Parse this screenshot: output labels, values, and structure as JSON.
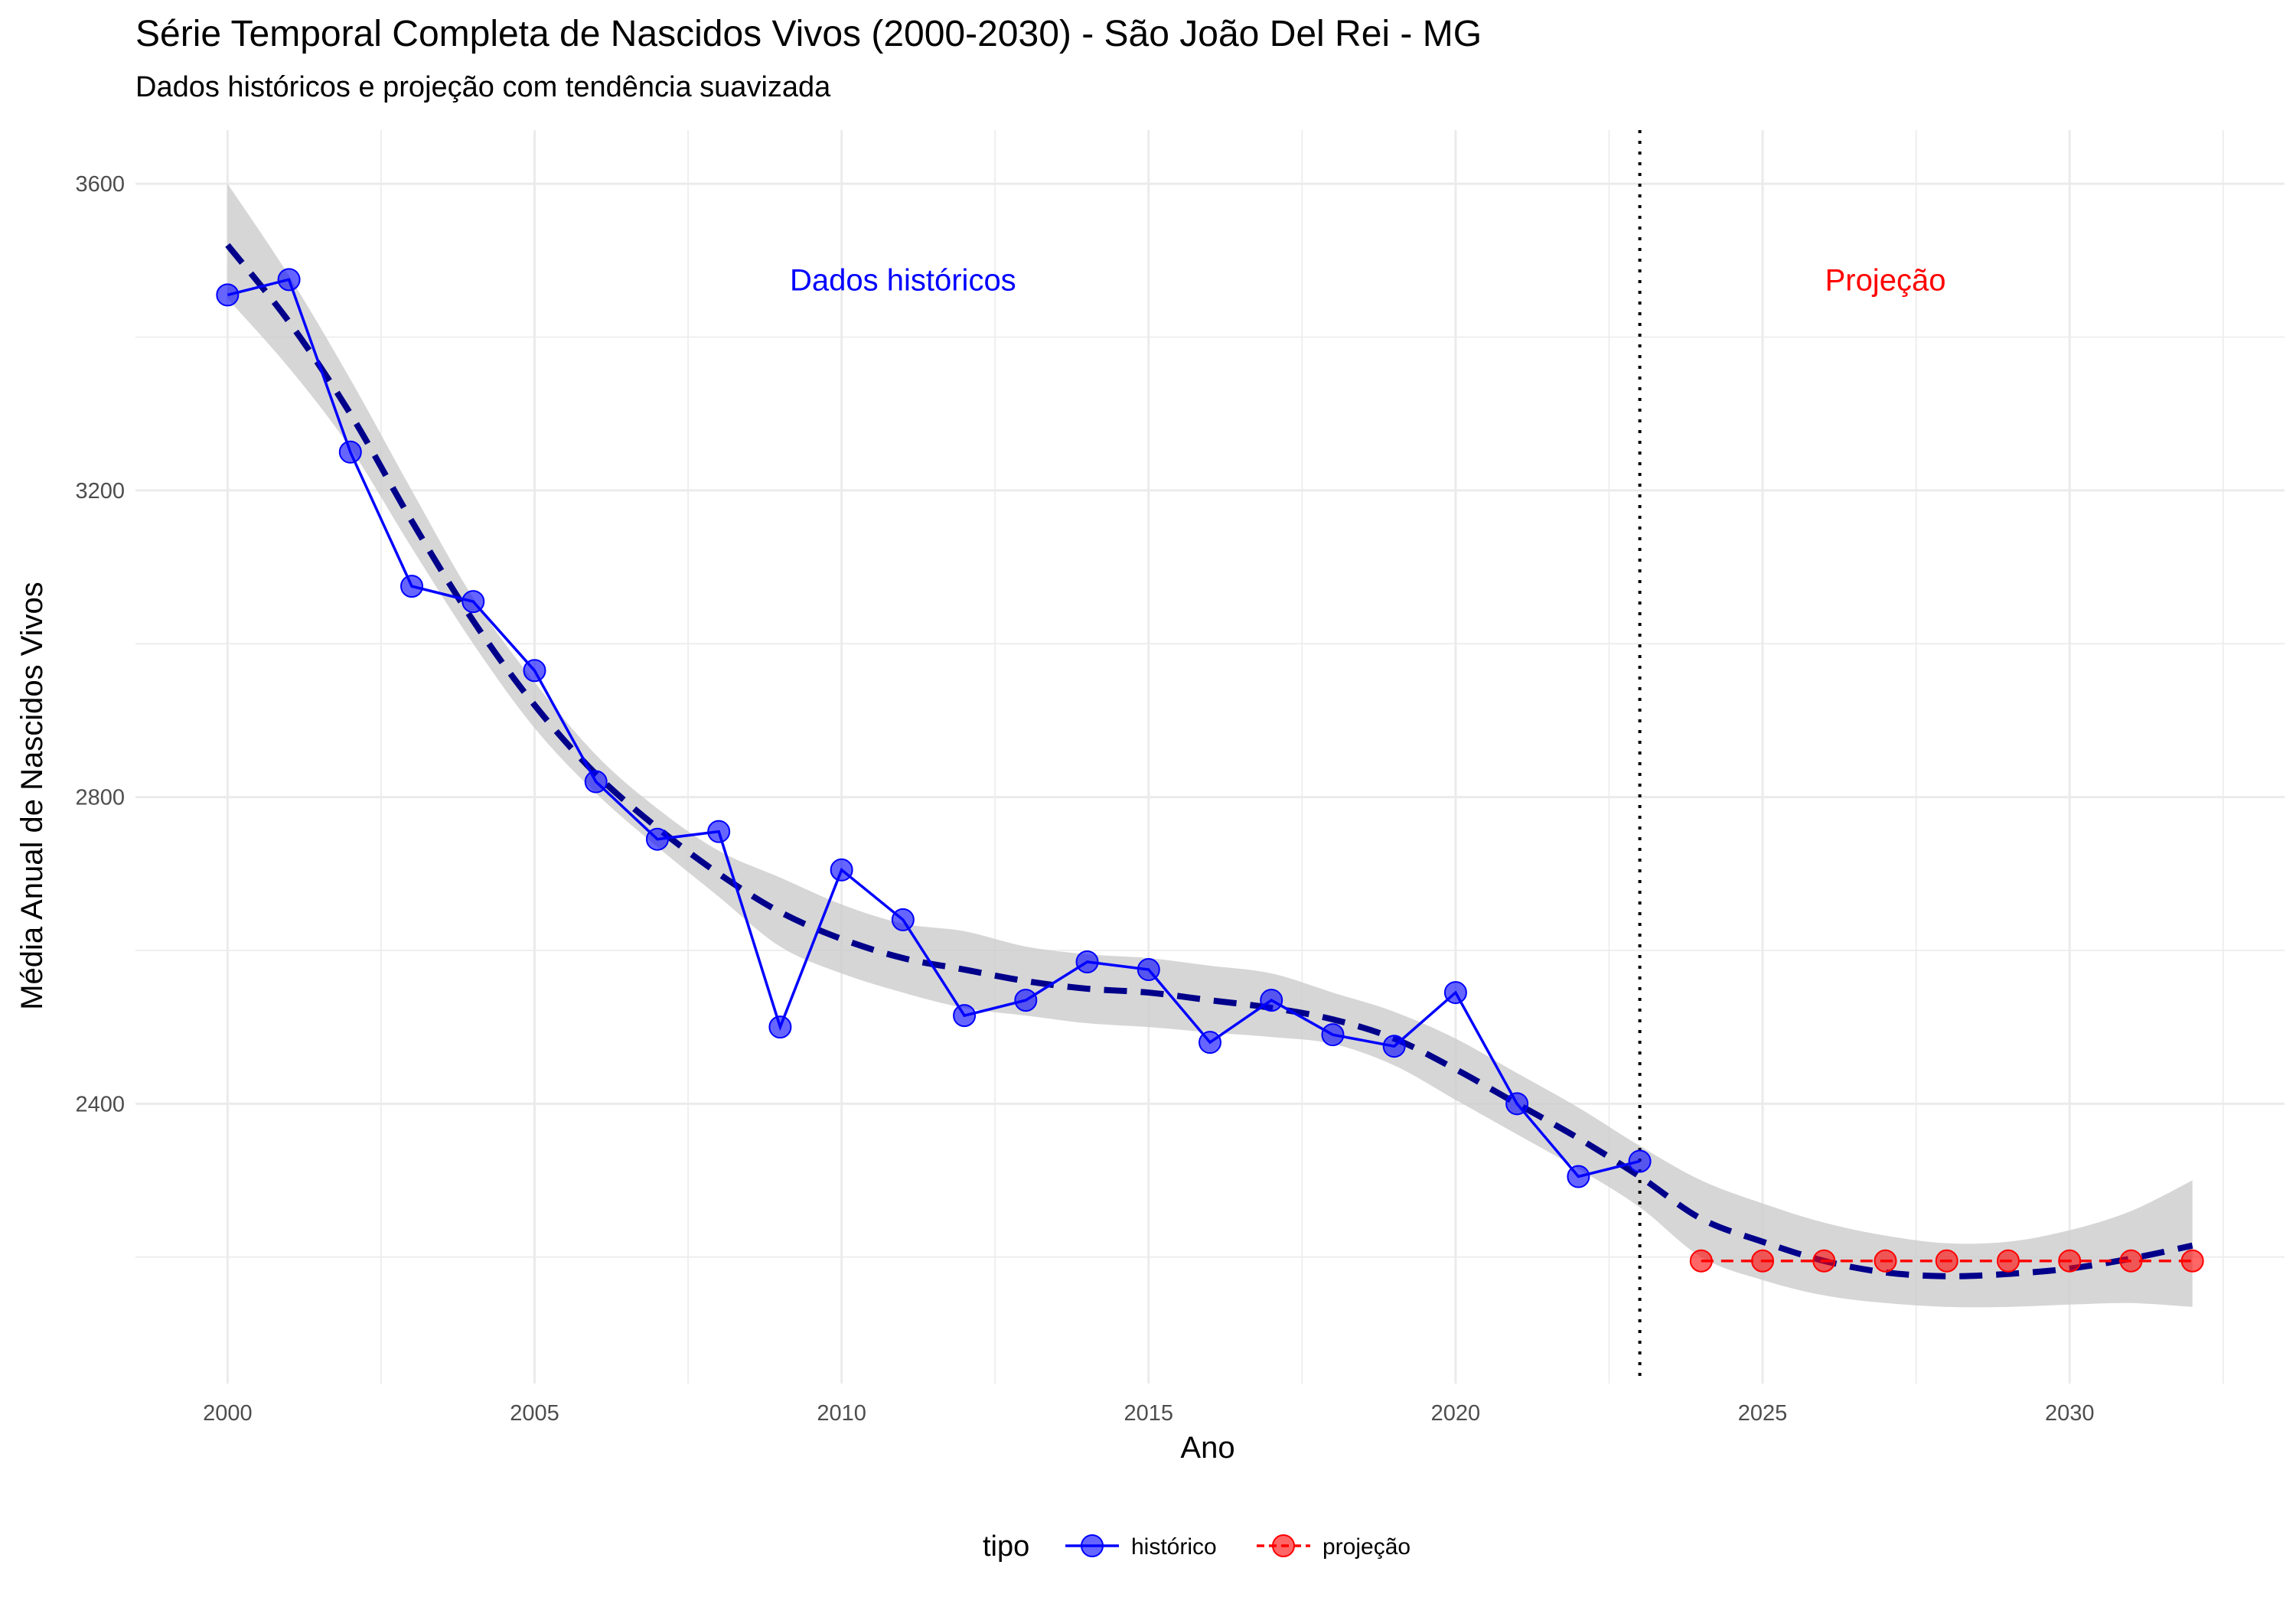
{
  "chart_data": {
    "type": "line",
    "title": "Série Temporal Completa de Nascidos Vivos (2000-2030) -  São João Del Rei - MG",
    "subtitle": "Dados históricos e projeção com tendência suavizada",
    "xlabel": "Ano",
    "ylabel": "Média Anual de Nascidos Vivos",
    "xlim": [
      1998.5,
      2033.5
    ],
    "ylim": [
      2035,
      3670
    ],
    "x_ticks": [
      2000,
      2005,
      2010,
      2015,
      2020,
      2025,
      2030
    ],
    "y_ticks": [
      2400,
      2800,
      3200,
      3600
    ],
    "grid": true,
    "colors": {
      "historico": "#0000ff",
      "projecao": "#ff0000",
      "trend": "#00008b",
      "ribbon": "#cccccc",
      "annot_hist": "#0000ff",
      "annot_proj": "#ff0000"
    },
    "series": [
      {
        "name": "histórico",
        "x": [
          2000,
          2001,
          2002,
          2003,
          2004,
          2005,
          2006,
          2007,
          2008,
          2009,
          2010,
          2011,
          2012,
          2013,
          2014,
          2015,
          2016,
          2017,
          2018,
          2019,
          2020,
          2021,
          2022,
          2023
        ],
        "values": [
          3455,
          3475,
          3250,
          3075,
          3055,
          2965,
          2820,
          2745,
          2755,
          2500,
          2705,
          2640,
          2515,
          2535,
          2585,
          2575,
          2480,
          2535,
          2490,
          2475,
          2545,
          2400,
          2305,
          2325
        ]
      },
      {
        "name": "projeção",
        "x": [
          2024,
          2025,
          2026,
          2027,
          2028,
          2029,
          2030,
          2031,
          2032
        ],
        "values": [
          2195,
          2195,
          2195,
          2195,
          2195,
          2195,
          2195,
          2195,
          2195
        ]
      }
    ],
    "trend": {
      "x": [
        2000,
        2001,
        2002,
        2003,
        2004,
        2005,
        2006,
        2007,
        2008,
        2009,
        2010,
        2011,
        2012,
        2013,
        2014,
        2015,
        2016,
        2017,
        2018,
        2019,
        2020,
        2021,
        2022,
        2023,
        2024,
        2025,
        2026,
        2027,
        2028,
        2029,
        2030,
        2031,
        2032
      ],
      "values": [
        3520,
        3420,
        3300,
        3160,
        3030,
        2920,
        2830,
        2760,
        2700,
        2650,
        2615,
        2590,
        2575,
        2560,
        2550,
        2545,
        2535,
        2525,
        2510,
        2485,
        2445,
        2400,
        2355,
        2305,
        2250,
        2220,
        2195,
        2180,
        2175,
        2178,
        2185,
        2198,
        2215
      ],
      "lower": [
        3450,
        3360,
        3255,
        3125,
        3000,
        2890,
        2805,
        2735,
        2670,
        2605,
        2570,
        2545,
        2525,
        2515,
        2505,
        2500,
        2493,
        2487,
        2478,
        2450,
        2405,
        2360,
        2315,
        2265,
        2200,
        2170,
        2150,
        2140,
        2135,
        2135,
        2138,
        2140,
        2135
      ],
      "upper": [
        3600,
        3480,
        3345,
        3200,
        3060,
        2950,
        2855,
        2785,
        2730,
        2695,
        2660,
        2635,
        2625,
        2605,
        2595,
        2590,
        2580,
        2570,
        2545,
        2520,
        2485,
        2440,
        2395,
        2345,
        2300,
        2270,
        2245,
        2228,
        2218,
        2220,
        2235,
        2260,
        2300
      ]
    },
    "vline_x": 2023,
    "annotations": [
      {
        "text": "Dados históricos",
        "x": 2011,
        "y": 3475,
        "color": "#0000ff"
      },
      {
        "text": "Projeção",
        "x": 2027,
        "y": 3475,
        "color": "#ff0000"
      }
    ],
    "legend": {
      "title": "tipo",
      "position": "bottom",
      "items": [
        "histórico",
        "projeção"
      ]
    }
  }
}
